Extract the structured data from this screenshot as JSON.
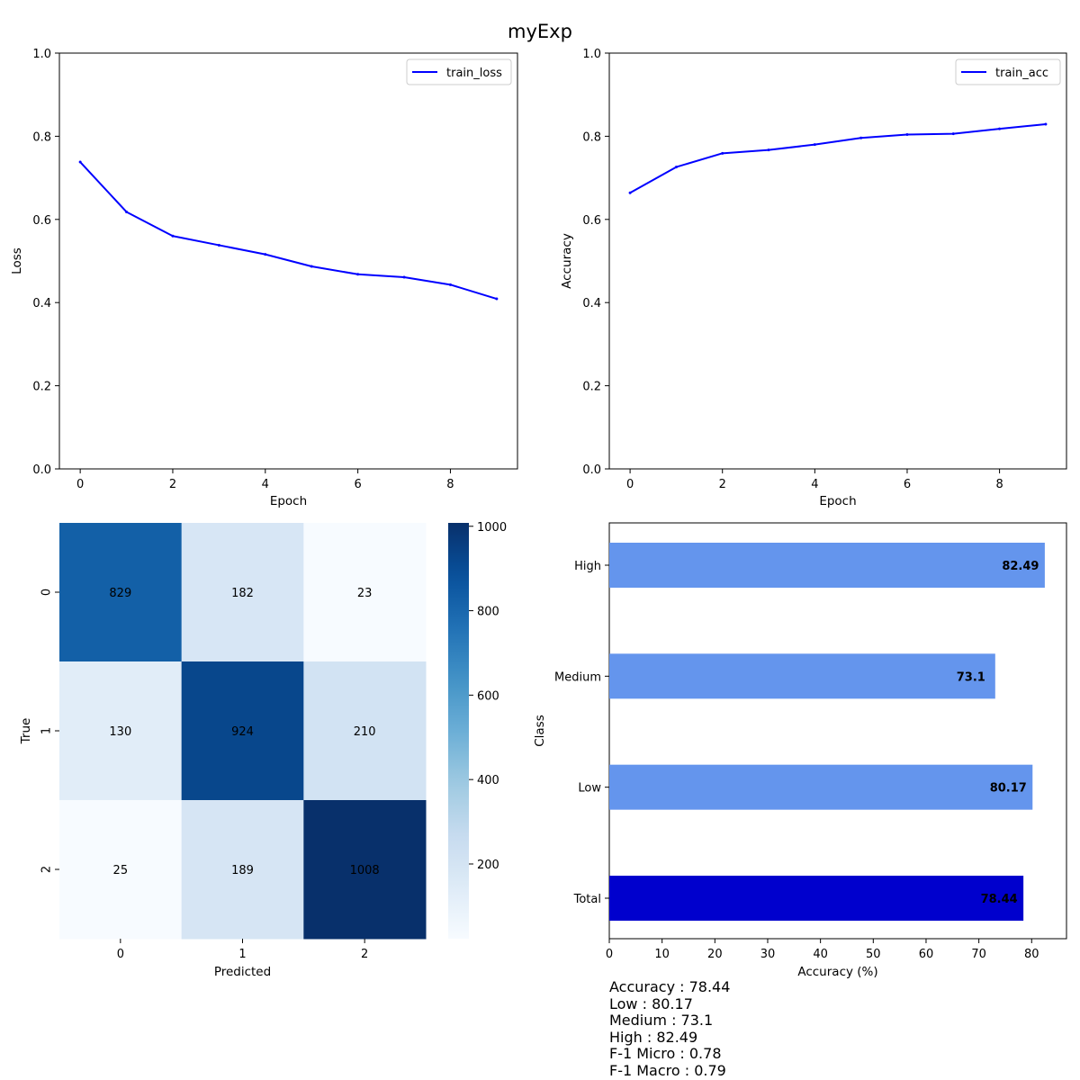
{
  "figure_title": "myExp",
  "chart_data": [
    {
      "type": "line",
      "xlabel": "Epoch",
      "ylabel": "Loss",
      "x": [
        0,
        1,
        2,
        3,
        4,
        5,
        6,
        7,
        8,
        9
      ],
      "series": [
        {
          "name": "train_loss",
          "color": "#0000ff",
          "values": [
            0.738,
            0.618,
            0.56,
            0.538,
            0.516,
            0.487,
            0.468,
            0.461,
            0.443,
            0.409
          ]
        }
      ],
      "xticks": [
        "0",
        "2",
        "4",
        "6",
        "8"
      ],
      "yticks": [
        "0.0",
        "0.2",
        "0.4",
        "0.6",
        "0.8",
        "1.0"
      ],
      "xlim": [
        -0.45,
        9.45
      ],
      "ylim": [
        0,
        1
      ],
      "legend": "top-right"
    },
    {
      "type": "line",
      "xlabel": "Epoch",
      "ylabel": "Accuracy",
      "x": [
        0,
        1,
        2,
        3,
        4,
        5,
        6,
        7,
        8,
        9
      ],
      "series": [
        {
          "name": "train_acc",
          "color": "#0000ff",
          "values": [
            0.664,
            0.726,
            0.759,
            0.767,
            0.78,
            0.796,
            0.804,
            0.806,
            0.818,
            0.829
          ]
        }
      ],
      "xticks": [
        "0",
        "2",
        "4",
        "6",
        "8"
      ],
      "yticks": [
        "0.0",
        "0.2",
        "0.4",
        "0.6",
        "0.8",
        "1.0"
      ],
      "xlim": [
        -0.45,
        9.45
      ],
      "ylim": [
        0,
        1
      ],
      "legend": "top-right"
    },
    {
      "type": "heatmap",
      "xlabel": "Predicted",
      "ylabel": "True",
      "x_categories": [
        "0",
        "1",
        "2"
      ],
      "y_categories": [
        "0",
        "1",
        "2"
      ],
      "matrix": [
        [
          829,
          182,
          23
        ],
        [
          130,
          924,
          210
        ],
        [
          25,
          189,
          1008
        ]
      ],
      "colormap": "Blues",
      "vmin": 23,
      "vmax": 1008,
      "colorbar_ticks": [
        "200",
        "400",
        "600",
        "800",
        "1000"
      ]
    },
    {
      "type": "bar",
      "orientation": "horizontal",
      "xlabel": "Accuracy (%)",
      "ylabel": "Class",
      "categories": [
        "Total",
        "Low",
        "Medium",
        "High"
      ],
      "values": [
        78.44,
        80.17,
        73.1,
        82.49
      ],
      "value_labels": [
        "78.44",
        "80.17",
        "73.1",
        "82.49"
      ],
      "colors": [
        "#0000cd",
        "#6495ed",
        "#6495ed",
        "#6495ed"
      ],
      "xticks": [
        "0",
        "10",
        "20",
        "30",
        "40",
        "50",
        "60",
        "70",
        "80"
      ],
      "xlim": [
        0,
        86.6
      ]
    }
  ],
  "stats": [
    "Accuracy : 78.44",
    "Low : 80.17",
    "Medium : 73.1",
    "High : 82.49",
    "F-1 Micro : 0.78",
    "F-1 Macro : 0.79"
  ]
}
